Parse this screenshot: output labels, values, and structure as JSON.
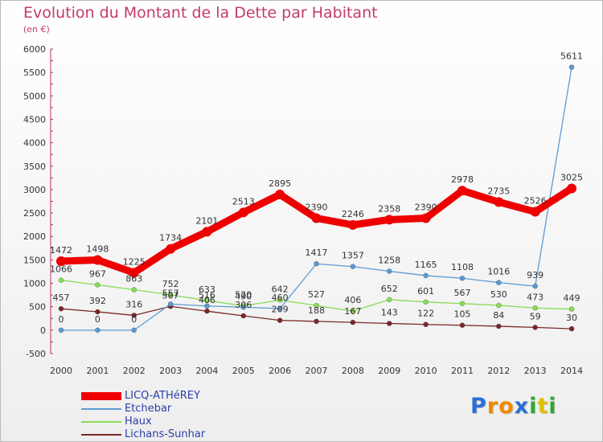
{
  "title": "Evolution du Montant de la Dette par Habitant",
  "subtitle": "(en €)",
  "logo": "Proxiti",
  "chart_data": {
    "type": "line",
    "title": "Evolution du Montant de la Dette par Habitant",
    "subtitle": "(en €)",
    "xlabel": "",
    "ylabel": "",
    "x": [
      "2000",
      "2001",
      "2002",
      "2003",
      "2004",
      "2005",
      "2006",
      "2007",
      "2008",
      "2009",
      "2010",
      "2011",
      "2012",
      "2013",
      "2014"
    ],
    "ylim": [
      -500,
      6000
    ],
    "yticks": [
      -500,
      0,
      500,
      1000,
      1500,
      2000,
      2500,
      3000,
      3500,
      4000,
      4500,
      5000,
      5500,
      6000
    ],
    "grid": false,
    "legend": "bottom-left",
    "series": [
      {
        "name": "LICQ-ATHéREY",
        "color": "#ee0000",
        "values": [
          1472,
          1498,
          1225,
          1734,
          2101,
          2513,
          2895,
          2390,
          2246,
          2358,
          2390,
          2978,
          2735,
          2526,
          3025
        ]
      },
      {
        "name": "Etchebar",
        "color": "#5b9bd5",
        "values": [
          0,
          0,
          0,
          557,
          516,
          490,
          460,
          1417,
          1357,
          1258,
          1165,
          1108,
          1016,
          939,
          5611
        ]
      },
      {
        "name": "Haux",
        "color": "#88dd55",
        "values": [
          1066,
          967,
          863,
          752,
          633,
          520,
          642,
          527,
          406,
          652,
          601,
          567,
          530,
          473,
          449
        ]
      },
      {
        "name": "Lichans-Sunhar",
        "color": "#7a2828",
        "values": [
          457,
          392,
          316,
          507,
          406,
          306,
          209,
          188,
          167,
          143,
          122,
          105,
          84,
          59,
          30
        ]
      }
    ]
  }
}
